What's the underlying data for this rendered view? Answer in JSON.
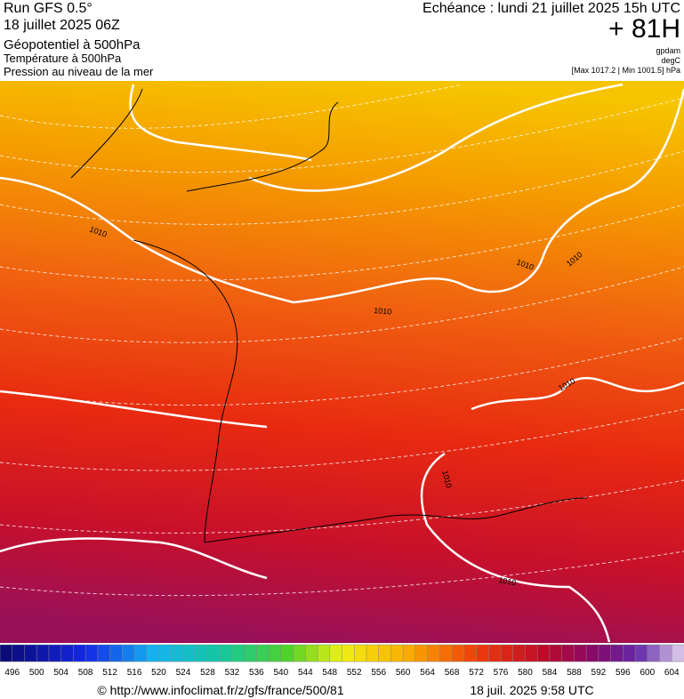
{
  "header": {
    "run": "Run GFS 0.5°",
    "run_date": "18 juillet 2025 06Z",
    "field1": "Géopotentiel à 500hPa",
    "field2": "Température à 500hPa",
    "field3": "Pression au niveau de la mer",
    "valid": "Echéance : lundi 21 juillet 2025 15h UTC",
    "lead": "+ 81H",
    "unit1": "gpdam",
    "unit2": "degC",
    "pressure_range": "[Max 1017.2 | Min 1001.5] hPa"
  },
  "map": {
    "isobar_labels": [
      "1010",
      "1010",
      "1010",
      "1010",
      "1010",
      "1010",
      "1010"
    ]
  },
  "colorbar": {
    "ticks": [
      496,
      500,
      504,
      508,
      512,
      516,
      520,
      524,
      528,
      532,
      536,
      540,
      544,
      548,
      552,
      556,
      560,
      564,
      568,
      572,
      576,
      580,
      584,
      588,
      592,
      596,
      600,
      604
    ]
  },
  "footer": {
    "source": "© http://www.infoclimat.fr/z/gfs/france/500/81",
    "generated": "18 juil. 2025  9:58 UTC"
  }
}
